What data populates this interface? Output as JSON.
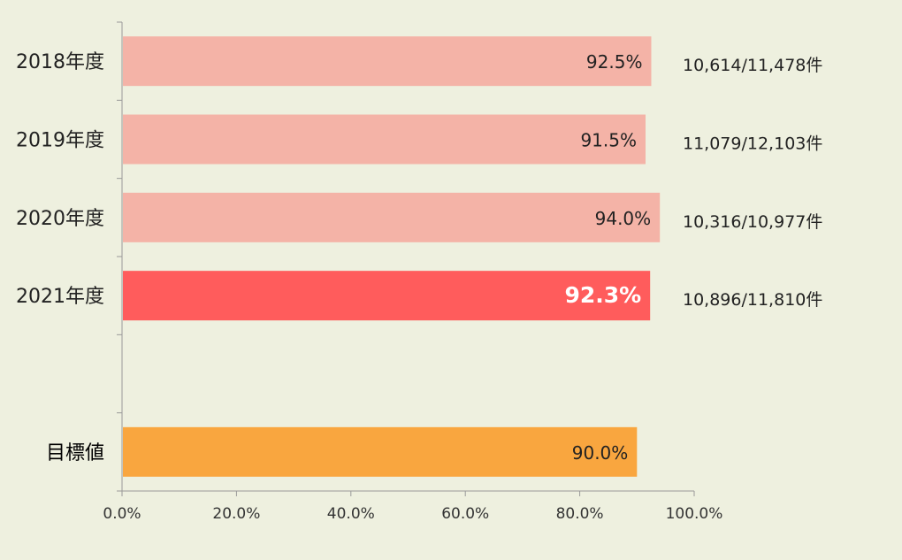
{
  "chart_data": {
    "type": "bar",
    "orientation": "horizontal",
    "categories": [
      "2018年度",
      "2019年度",
      "2020年度",
      "2021年度",
      "",
      "目標値"
    ],
    "values": [
      92.5,
      91.5,
      94.0,
      92.3,
      null,
      90.0
    ],
    "value_labels": [
      "92.5%",
      "91.5%",
      "94.0%",
      "92.3%",
      "",
      "90.0%"
    ],
    "count_labels": [
      "10,614/11,478件",
      "11,079/12,103件",
      "10,316/10,977件",
      "10,896/11,810件",
      "",
      ""
    ],
    "xlim": [
      0,
      100
    ],
    "x_ticks": [
      "0.0%",
      "20.0%",
      "40.0%",
      "60.0%",
      "80.0%",
      "100.0%"
    ],
    "grid": false,
    "highlight_index": 3,
    "target_index": 5,
    "colors": {
      "bar": "#f4b3a7",
      "highlight": "#ff5c5c",
      "target": "#f9a63f",
      "background": "#eef0df"
    },
    "title": "",
    "xlabel": "",
    "ylabel": ""
  }
}
